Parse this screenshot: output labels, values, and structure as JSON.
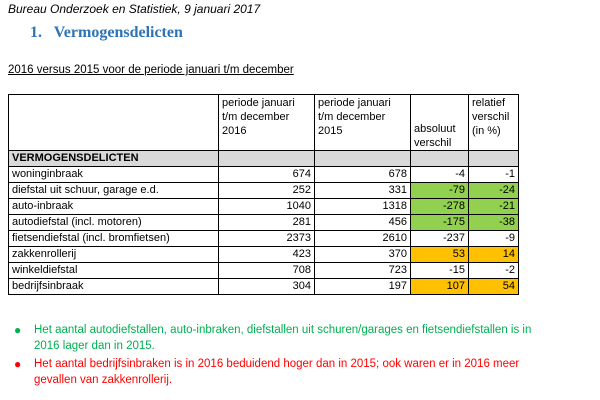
{
  "header": {
    "line": "Bureau Onderzoek en Statistiek, 9 januari 2017",
    "section_number": "1.",
    "section_title": "Vermogensdelicten",
    "subtitle": "2016 versus 2015 voor de periode januari t/m december"
  },
  "table": {
    "columns": [
      "",
      "periode januari t/m december 2016",
      "periode januari t/m december 2015",
      "absoluut verschil",
      "relatief verschil (in %)"
    ],
    "section_label": "VERMOGENSDELICTEN",
    "rows": [
      {
        "label": "woninginbraak",
        "v2016": "674",
        "v2015": "678",
        "abs": "-4",
        "rel": "-1",
        "highlight": ""
      },
      {
        "label": "diefstal uit schuur, garage e.d.",
        "v2016": "252",
        "v2015": "331",
        "abs": "-79",
        "rel": "-24",
        "highlight": "green"
      },
      {
        "label": "auto-inbraak",
        "v2016": "1040",
        "v2015": "1318",
        "abs": "-278",
        "rel": "-21",
        "highlight": "green"
      },
      {
        "label": "autodiefstal (incl. motoren)",
        "v2016": "281",
        "v2015": "456",
        "abs": "-175",
        "rel": "-38",
        "highlight": "green"
      },
      {
        "label": "fietsendiefstal (incl. bromfietsen)",
        "v2016": "2373",
        "v2015": "2610",
        "abs": "-237",
        "rel": "-9",
        "highlight": ""
      },
      {
        "label": "zakkenrollerij",
        "v2016": "423",
        "v2015": "370",
        "abs": "53",
        "rel": "14",
        "highlight": "orange"
      },
      {
        "label": "winkeldiefstal",
        "v2016": "708",
        "v2015": "723",
        "abs": "-15",
        "rel": "-2",
        "highlight": ""
      },
      {
        "label": "bedrijfsinbraak",
        "v2016": "304",
        "v2015": "197",
        "abs": "107",
        "rel": "54",
        "highlight": "orange"
      }
    ]
  },
  "notes": [
    {
      "text": "Het aantal autodiefstallen, auto-inbraken, diefstallen uit schuren/garages en fietsendiefstallen is in 2016 lager dan in 2015.",
      "color": "#00b050"
    },
    {
      "text": "Het aantal bedrijfsinbraken is in 2016 beduidend hoger dan in 2015; ook waren er in 2016 meer gevallen van zakkenrollerij.",
      "color": "#ff0000"
    }
  ],
  "colors": {
    "title": "#2e74b5",
    "highlight_green": "#92d050",
    "highlight_orange": "#ffc000",
    "section_row": "#d9d9d9"
  }
}
